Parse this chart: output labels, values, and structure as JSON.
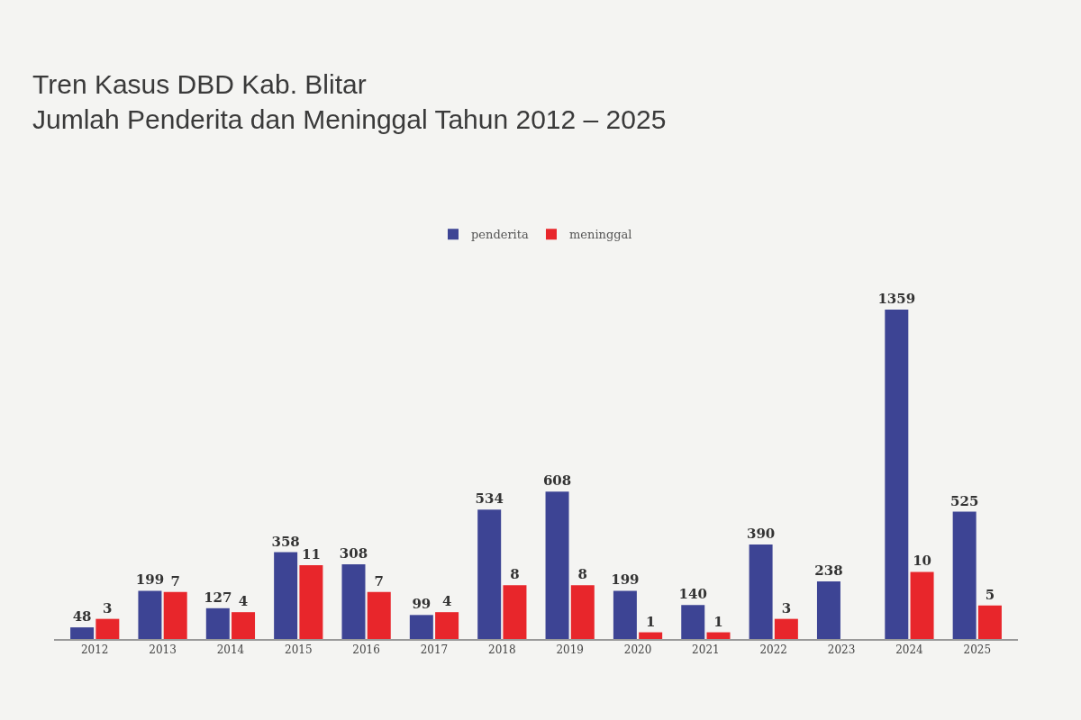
{
  "chart_data": {
    "type": "bar",
    "title": "Tren Kasus DBD Kab. Blitar",
    "subtitle": "Jumlah Penderita dan Meninggal Tahun 2012 – 2025",
    "categories": [
      "2012",
      "2013",
      "2014",
      "2015",
      "2016",
      "2017",
      "2018",
      "2019",
      "2020",
      "2021",
      "2022",
      "2023",
      "2024",
      "2025"
    ],
    "series": [
      {
        "name": "penderita",
        "color": "#3d4494",
        "values": [
          48,
          199,
          127,
          358,
          308,
          99,
          534,
          608,
          199,
          140,
          390,
          238,
          1359,
          525
        ]
      },
      {
        "name": "meninggal",
        "color": "#e8262b",
        "axis": "y2",
        "values": [
          3,
          7,
          4,
          11,
          7,
          4,
          8,
          8,
          1,
          1,
          3,
          null,
          10,
          5
        ]
      }
    ],
    "data_labels": true,
    "legend": "top",
    "tick_labels": "x"
  }
}
